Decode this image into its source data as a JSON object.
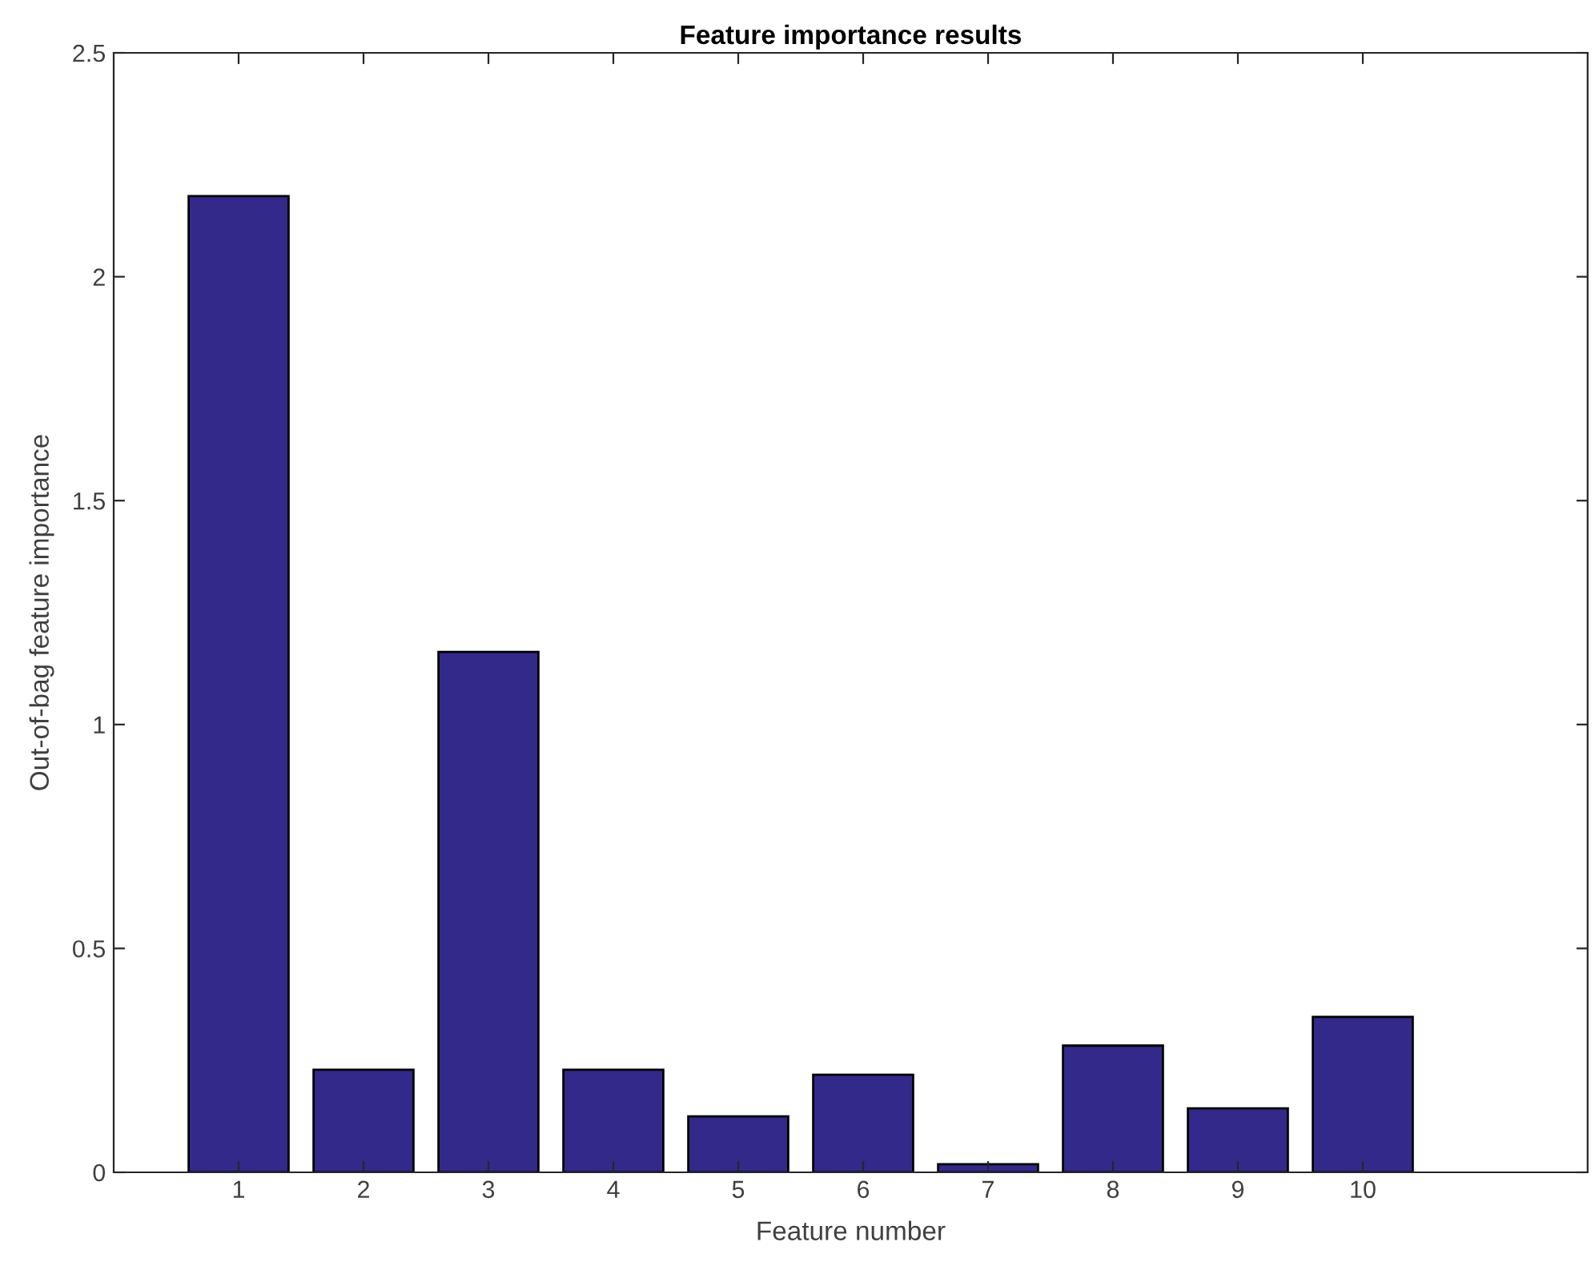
{
  "chart_data": {
    "type": "bar",
    "title": "Feature importance results",
    "xlabel": "Feature number",
    "ylabel": "Out-of-bag feature importance",
    "x": [
      1,
      2,
      3,
      4,
      5,
      6,
      7,
      8,
      9,
      10
    ],
    "values": [
      2.18,
      0.229,
      1.162,
      0.229,
      0.125,
      0.218,
      0.018,
      0.283,
      0.143,
      0.347
    ],
    "color": "#33298a",
    "xlim": [
      0,
      11.8
    ],
    "xticks": [
      1,
      2,
      3,
      4,
      5,
      6,
      7,
      8,
      9,
      10
    ],
    "ylim": [
      0,
      2.5
    ],
    "yticks": [
      0,
      0.5,
      1,
      1.5,
      2,
      2.5
    ],
    "grid": false
  }
}
